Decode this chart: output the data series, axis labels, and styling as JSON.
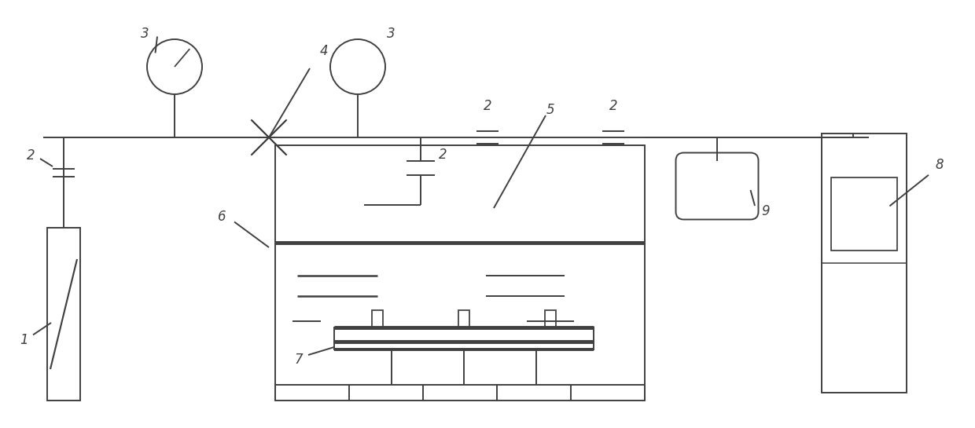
{
  "bg": "#ffffff",
  "lc": "#404040",
  "lw": 1.4,
  "fw": 12.4,
  "fh": 5.45,
  "label_fs": 12
}
